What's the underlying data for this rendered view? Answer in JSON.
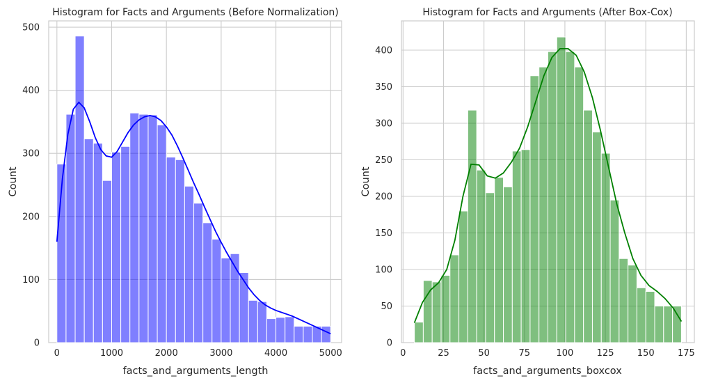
{
  "chart_data": [
    {
      "type": "bar",
      "title": "Histogram for Facts and Arguments (Before Normalization)",
      "xlabel": "facts_and_arguments_length",
      "ylabel": "Count",
      "xlim": [
        -150,
        5200
      ],
      "ylim": [
        0,
        510
      ],
      "xticks": [
        0,
        1000,
        2000,
        3000,
        4000,
        5000
      ],
      "yticks": [
        0,
        100,
        200,
        300,
        400,
        500
      ],
      "grid": true,
      "bar_color": "#0000ff",
      "bar_opacity": 0.5,
      "kde_color": "#0000ff",
      "bin_edges": [
        0,
        166.7,
        333.3,
        500,
        666.7,
        833.3,
        1000,
        1166.7,
        1333.3,
        1500,
        1666.7,
        1833.3,
        2000,
        2166.7,
        2333.3,
        2500,
        2666.7,
        2833.3,
        3000,
        3166.7,
        3333.3,
        3500,
        3666.7,
        3833.3,
        4000,
        4166.7,
        4333.3,
        4500,
        4666.7,
        4833.3,
        5000
      ],
      "counts": [
        283,
        362,
        486,
        323,
        316,
        257,
        302,
        311,
        364,
        362,
        361,
        345,
        294,
        290,
        248,
        221,
        190,
        164,
        134,
        141,
        111,
        67,
        65,
        38,
        40,
        41,
        26,
        26,
        26,
        26
      ],
      "kde": {
        "x": [
          0,
          100,
          200,
          300,
          400,
          500,
          600,
          700,
          800,
          900,
          1000,
          1100,
          1200,
          1300,
          1400,
          1500,
          1600,
          1700,
          1800,
          1900,
          2000,
          2100,
          2200,
          2300,
          2400,
          2500,
          2600,
          2700,
          2800,
          2900,
          3000,
          3100,
          3200,
          3300,
          3400,
          3500,
          3600,
          3700,
          3800,
          3900,
          4000,
          4100,
          4200,
          4300,
          4400,
          4500,
          4600,
          4700,
          4800,
          4900,
          5000
        ],
        "y": [
          160,
          260,
          330,
          370,
          381,
          372,
          350,
          325,
          306,
          296,
          294,
          303,
          318,
          333,
          345,
          353,
          358,
          360,
          358,
          352,
          342,
          329,
          312,
          293,
          273,
          253,
          234,
          214,
          195,
          176,
          159,
          143,
          128,
          113,
          100,
          87,
          76,
          67,
          60,
          55,
          51,
          48,
          45,
          42,
          38,
          34,
          30,
          26,
          22,
          18,
          14
        ]
      }
    },
    {
      "type": "bar",
      "title": "Histogram for Facts and Arguments (After Box-Cox)",
      "xlabel": "facts_and_arguments_boxcox",
      "ylabel": "Count",
      "xlim": [
        -1,
        180
      ],
      "ylim": [
        0,
        440
      ],
      "xticks": [
        0,
        25,
        50,
        75,
        100,
        125,
        150,
        175
      ],
      "yticks": [
        0,
        50,
        100,
        150,
        200,
        250,
        300,
        350,
        400
      ],
      "grid": true,
      "bar_color": "#008000",
      "bar_opacity": 0.5,
      "kde_color": "#008000",
      "bin_edges": [
        7.0,
        12.5,
        18.0,
        23.5,
        29.0,
        34.5,
        40.0,
        45.5,
        51.0,
        56.5,
        62.0,
        67.5,
        73.0,
        78.5,
        84.0,
        89.5,
        95.0,
        100.5,
        106.0,
        111.5,
        117.0,
        122.5,
        128.0,
        133.5,
        139.0,
        144.5,
        150.0,
        155.5,
        161.0,
        166.5,
        172.0
      ],
      "counts": [
        28,
        85,
        83,
        92,
        120,
        180,
        318,
        236,
        205,
        226,
        213,
        262,
        264,
        365,
        377,
        398,
        418,
        398,
        377,
        318,
        288,
        259,
        195,
        115,
        106,
        75,
        70,
        50,
        50,
        50
      ],
      "kde": {
        "x": [
          7,
          12,
          17,
          22,
          27,
          32,
          37,
          42,
          47,
          52,
          57,
          62,
          67,
          72,
          77,
          82,
          87,
          92,
          97,
          102,
          107,
          112,
          117,
          122,
          127,
          132,
          137,
          142,
          147,
          152,
          157,
          162,
          167,
          172
        ],
        "y": [
          27,
          55,
          72,
          82,
          100,
          140,
          200,
          244,
          243,
          228,
          225,
          232,
          247,
          266,
          295,
          330,
          365,
          390,
          402,
          402,
          393,
          370,
          335,
          290,
          240,
          190,
          150,
          115,
          92,
          78,
          70,
          60,
          47,
          29
        ]
      }
    }
  ]
}
